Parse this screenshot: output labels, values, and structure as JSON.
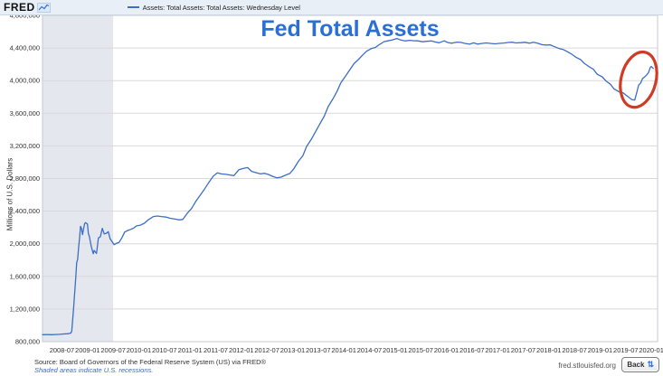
{
  "header": {
    "logo_text": "FRED",
    "legend_series_label": "Assets: Total Assets: Total Assets: Wednesday Level"
  },
  "title": "Fed Total Assets",
  "footer": {
    "source_line": "Source: Board of Governors of the Federal Reserve System (US) via FRED®",
    "recession_note": "Shaded areas indicate U.S. recessions.",
    "site_url": "fred.stlouisfed.org",
    "back_button_label": "Back",
    "back_button_icon": "⇅"
  },
  "colors": {
    "line": "#3d6dc7",
    "title": "#2a6fd6",
    "recession_band": "#e4e7ee",
    "gridline": "#d9d9d9",
    "plot_border": "#c3c9d2",
    "axis_text": "#333333",
    "annotation": "#d03b25",
    "top_band_bg": "#e9eff7",
    "note_blue": "#3b6cc5"
  },
  "chart_data": {
    "type": "line",
    "title": "Fed Total Assets",
    "ylabel": "Millions of U.S. Dollars",
    "xlabel": "",
    "grid": "horizontal",
    "legend_position": "top-left",
    "y_min": 800000,
    "y_max": 4800000,
    "y_step": 400000,
    "x_range": [
      "2008-02-15",
      "2020-02-15"
    ],
    "x_ticks": [
      "2008-07",
      "2009-01",
      "2009-07",
      "2010-01",
      "2010-07",
      "2011-01",
      "2011-07",
      "2012-01",
      "2012-07",
      "2013-01",
      "2013-07",
      "2014-01",
      "2014-07",
      "2015-01",
      "2015-07",
      "2016-01",
      "2016-07",
      "2017-01",
      "2017-07",
      "2018-01",
      "2018-07",
      "2019-01",
      "2019-07",
      "2020-01"
    ],
    "recession_bands": [
      [
        "2008-02-15",
        "2009-07-01"
      ]
    ],
    "annotations": [
      {
        "type": "ellipse",
        "center_date": "2019-10-01",
        "center_value": 4012000,
        "rx_years": 0.34,
        "ry_value": 345000,
        "rotate_deg": 14,
        "color": "#d03b25"
      }
    ],
    "series": [
      {
        "name": "Assets: Total Assets: Total Assets: Wednesday Level",
        "points": [
          [
            "2008-02-15",
            885000
          ],
          [
            "2008-03-15",
            888000
          ],
          [
            "2008-04-15",
            885000
          ],
          [
            "2008-05-15",
            887000
          ],
          [
            "2008-06-15",
            890000
          ],
          [
            "2008-07-15",
            894000
          ],
          [
            "2008-08-15",
            898000
          ],
          [
            "2008-09-03",
            905000
          ],
          [
            "2008-09-10",
            925000
          ],
          [
            "2008-09-24",
            1214000
          ],
          [
            "2008-10-08",
            1576000
          ],
          [
            "2008-10-15",
            1772000
          ],
          [
            "2008-10-22",
            1804000
          ],
          [
            "2008-10-29",
            1953000
          ],
          [
            "2008-11-05",
            2075000
          ],
          [
            "2008-11-12",
            2214000
          ],
          [
            "2008-11-19",
            2192000
          ],
          [
            "2008-11-26",
            2112000
          ],
          [
            "2008-12-10",
            2245000
          ],
          [
            "2008-12-17",
            2259000
          ],
          [
            "2008-12-31",
            2241000
          ],
          [
            "2009-01-07",
            2125000
          ],
          [
            "2009-01-14",
            2090000
          ],
          [
            "2009-01-28",
            1967000
          ],
          [
            "2009-02-11",
            1878000
          ],
          [
            "2009-02-18",
            1918000
          ],
          [
            "2009-03-04",
            1881000
          ],
          [
            "2009-03-18",
            2071000
          ],
          [
            "2009-04-01",
            2087000
          ],
          [
            "2009-04-15",
            2189000
          ],
          [
            "2009-04-29",
            2121000
          ],
          [
            "2009-05-13",
            2127000
          ],
          [
            "2009-05-27",
            2148000
          ],
          [
            "2009-06-10",
            2060000
          ],
          [
            "2009-06-24",
            2026000
          ],
          [
            "2009-07-08",
            1989000
          ],
          [
            "2009-07-22",
            2003000
          ],
          [
            "2009-08-12",
            2015000
          ],
          [
            "2009-09-02",
            2072000
          ],
          [
            "2009-09-23",
            2144000
          ],
          [
            "2009-10-14",
            2163000
          ],
          [
            "2009-11-04",
            2176000
          ],
          [
            "2009-11-25",
            2192000
          ],
          [
            "2009-12-16",
            2219000
          ],
          [
            "2010-01-13",
            2228000
          ],
          [
            "2010-02-10",
            2251000
          ],
          [
            "2010-03-10",
            2297000
          ],
          [
            "2010-04-14",
            2334000
          ],
          [
            "2010-05-12",
            2340000
          ],
          [
            "2010-06-09",
            2333000
          ],
          [
            "2010-07-14",
            2327000
          ],
          [
            "2010-08-11",
            2313000
          ],
          [
            "2010-09-15",
            2302000
          ],
          [
            "2010-10-13",
            2293000
          ],
          [
            "2010-11-10",
            2298000
          ],
          [
            "2010-12-15",
            2381000
          ],
          [
            "2011-01-12",
            2432000
          ],
          [
            "2011-02-09",
            2513000
          ],
          [
            "2011-03-09",
            2586000
          ],
          [
            "2011-04-13",
            2670000
          ],
          [
            "2011-05-11",
            2747000
          ],
          [
            "2011-06-15",
            2831000
          ],
          [
            "2011-07-13",
            2870000
          ],
          [
            "2011-08-10",
            2857000
          ],
          [
            "2011-09-14",
            2851000
          ],
          [
            "2011-10-12",
            2843000
          ],
          [
            "2011-11-09",
            2836000
          ],
          [
            "2011-12-14",
            2908000
          ],
          [
            "2012-01-11",
            2922000
          ],
          [
            "2012-02-15",
            2934000
          ],
          [
            "2012-03-14",
            2887000
          ],
          [
            "2012-04-11",
            2873000
          ],
          [
            "2012-05-16",
            2857000
          ],
          [
            "2012-06-13",
            2864000
          ],
          [
            "2012-07-11",
            2850000
          ],
          [
            "2012-08-15",
            2823000
          ],
          [
            "2012-09-12",
            2809000
          ],
          [
            "2012-10-10",
            2817000
          ],
          [
            "2012-11-14",
            2843000
          ],
          [
            "2012-12-12",
            2861000
          ],
          [
            "2013-01-09",
            2917000
          ],
          [
            "2013-02-13",
            3012000
          ],
          [
            "2013-03-13",
            3078000
          ],
          [
            "2013-04-10",
            3193000
          ],
          [
            "2013-05-15",
            3286000
          ],
          [
            "2013-06-12",
            3373000
          ],
          [
            "2013-07-10",
            3462000
          ],
          [
            "2013-08-14",
            3565000
          ],
          [
            "2013-09-11",
            3681000
          ],
          [
            "2013-10-16",
            3781000
          ],
          [
            "2013-11-13",
            3866000
          ],
          [
            "2013-12-11",
            3975000
          ],
          [
            "2014-01-15",
            4060000
          ],
          [
            "2014-02-12",
            4129000
          ],
          [
            "2014-03-12",
            4207000
          ],
          [
            "2014-04-16",
            4263000
          ],
          [
            "2014-05-14",
            4315000
          ],
          [
            "2014-06-11",
            4360000
          ],
          [
            "2014-07-16",
            4394000
          ],
          [
            "2014-08-13",
            4407000
          ],
          [
            "2014-09-10",
            4441000
          ],
          [
            "2014-10-15",
            4479000
          ],
          [
            "2014-11-12",
            4487000
          ],
          [
            "2014-12-10",
            4498000
          ],
          [
            "2015-01-14",
            4516000
          ],
          [
            "2015-02-11",
            4498000
          ],
          [
            "2015-03-11",
            4486000
          ],
          [
            "2015-04-15",
            4494000
          ],
          [
            "2015-05-13",
            4489000
          ],
          [
            "2015-06-10",
            4487000
          ],
          [
            "2015-07-15",
            4477000
          ],
          [
            "2015-08-12",
            4482000
          ],
          [
            "2015-09-16",
            4486000
          ],
          [
            "2015-10-14",
            4473000
          ],
          [
            "2015-11-11",
            4464000
          ],
          [
            "2015-12-16",
            4487000
          ],
          [
            "2016-01-13",
            4466000
          ],
          [
            "2016-02-10",
            4459000
          ],
          [
            "2016-03-16",
            4472000
          ],
          [
            "2016-04-13",
            4469000
          ],
          [
            "2016-05-11",
            4457000
          ],
          [
            "2016-06-15",
            4446000
          ],
          [
            "2016-07-13",
            4463000
          ],
          [
            "2016-08-10",
            4448000
          ],
          [
            "2016-09-14",
            4457000
          ],
          [
            "2016-10-12",
            4462000
          ],
          [
            "2016-11-16",
            4455000
          ],
          [
            "2016-12-14",
            4451000
          ],
          [
            "2017-01-11",
            4456000
          ],
          [
            "2017-02-15",
            4461000
          ],
          [
            "2017-03-15",
            4468000
          ],
          [
            "2017-04-12",
            4471000
          ],
          [
            "2017-05-10",
            4462000
          ],
          [
            "2017-06-14",
            4465000
          ],
          [
            "2017-07-12",
            4470000
          ],
          [
            "2017-08-16",
            4459000
          ],
          [
            "2017-09-13",
            4470000
          ],
          [
            "2017-10-11",
            4460000
          ],
          [
            "2017-11-15",
            4440000
          ],
          [
            "2017-12-13",
            4437000
          ],
          [
            "2018-01-10",
            4439000
          ],
          [
            "2018-02-14",
            4414000
          ],
          [
            "2018-03-14",
            4393000
          ],
          [
            "2018-04-11",
            4382000
          ],
          [
            "2018-05-16",
            4350000
          ],
          [
            "2018-06-13",
            4322000
          ],
          [
            "2018-07-11",
            4287000
          ],
          [
            "2018-08-15",
            4257000
          ],
          [
            "2018-09-12",
            4208000
          ],
          [
            "2018-10-10",
            4175000
          ],
          [
            "2018-11-14",
            4140000
          ],
          [
            "2018-12-12",
            4076000
          ],
          [
            "2019-01-16",
            4047000
          ],
          [
            "2019-02-13",
            3996000
          ],
          [
            "2019-03-13",
            3956000
          ],
          [
            "2019-04-10",
            3897000
          ],
          [
            "2019-05-15",
            3863000
          ],
          [
            "2019-06-12",
            3852000
          ],
          [
            "2019-07-10",
            3813000
          ],
          [
            "2019-08-14",
            3768000
          ],
          [
            "2019-09-04",
            3761000
          ],
          [
            "2019-09-18",
            3845000
          ],
          [
            "2019-10-02",
            3946000
          ],
          [
            "2019-10-16",
            3970000
          ],
          [
            "2019-10-30",
            4026000
          ],
          [
            "2019-11-13",
            4043000
          ],
          [
            "2019-11-27",
            4066000
          ],
          [
            "2019-12-11",
            4096000
          ],
          [
            "2019-12-25",
            4166000
          ],
          [
            "2020-01-01",
            4173000
          ],
          [
            "2020-01-15",
            4149000
          ]
        ]
      }
    ]
  }
}
